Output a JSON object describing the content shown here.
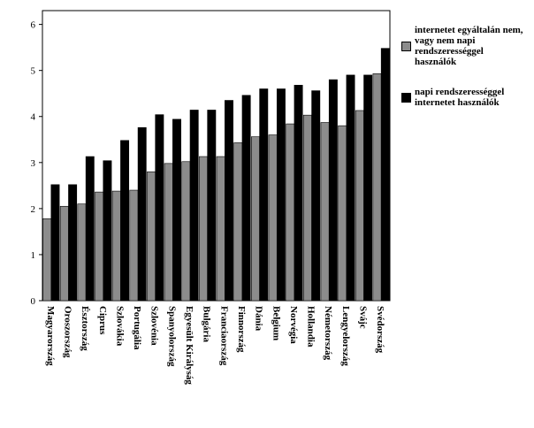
{
  "chart_data": {
    "type": "bar",
    "categories": [
      "Magyarország",
      "Oroszország",
      "Észtország",
      "Ciprus",
      "Szlovákia",
      "Portugália",
      "Szlovénia",
      "Spanyolország",
      "Egyesült Királyság",
      "Bulgária",
      "Franciaország",
      "Finnország",
      "Dánia",
      "Belgium",
      "Norvégia",
      "Hollandia",
      "Németország",
      "Lengyelország",
      "Svájc",
      "Svédország"
    ],
    "series": [
      {
        "name": "internetet egyáltalán nem, vagy nem napi rendszerességgel használók",
        "color": "#8c8c8c",
        "values": [
          1.78,
          2.05,
          2.1,
          2.36,
          2.38,
          2.4,
          2.8,
          2.98,
          3.02,
          3.13,
          3.13,
          3.43,
          3.56,
          3.6,
          3.84,
          4.03,
          3.87,
          3.8,
          4.13,
          4.93
        ]
      },
      {
        "name": "napi rendszerességgel internetet használók",
        "color": "#000000",
        "values": [
          2.52,
          2.52,
          3.13,
          3.04,
          3.48,
          3.76,
          4.04,
          3.94,
          4.14,
          4.14,
          4.35,
          4.46,
          4.6,
          4.6,
          4.68,
          4.56,
          4.8,
          4.9,
          4.9,
          5.48
        ]
      }
    ],
    "ylim": [
      0,
      6.3
    ],
    "yticks": [
      0,
      1,
      2,
      3,
      4,
      5,
      6
    ],
    "grid": false,
    "legend": "right"
  }
}
